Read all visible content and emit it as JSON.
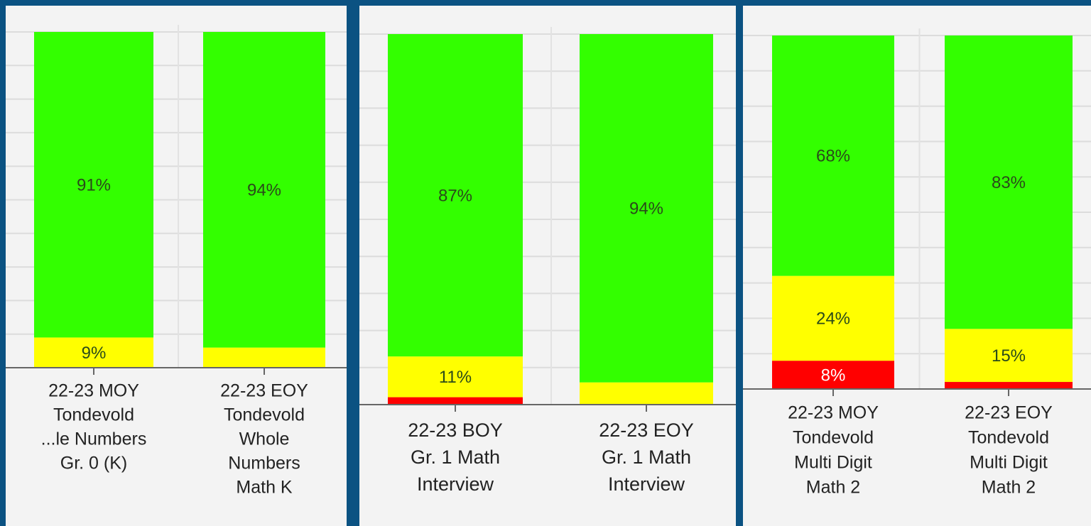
{
  "chart_data": [
    {
      "type": "stacked-bar",
      "categories": [
        [
          "22-23 MOY",
          "Tondevold",
          "...le Numbers",
          "Gr. 0 (K)"
        ],
        [
          "22-23 EOY",
          "Tondevold",
          "Whole",
          "Numbers",
          "Math K"
        ]
      ],
      "series": [
        {
          "color": "#ff0000",
          "values": [
            0,
            0
          ]
        },
        {
          "color": "#ffff00",
          "values": [
            9,
            6
          ],
          "value_labels": [
            "9%",
            null
          ]
        },
        {
          "color": "#33ff00",
          "values": [
            91,
            94
          ],
          "value_labels": [
            "91%",
            "94%"
          ]
        }
      ],
      "ylim": [
        0,
        100
      ],
      "yticks": [
        0,
        10,
        20,
        30,
        40,
        50,
        60,
        70,
        80,
        90,
        100
      ],
      "grid": true
    },
    {
      "type": "stacked-bar",
      "categories": [
        [
          "22-23 BOY",
          "Gr. 1 Math",
          "Interview"
        ],
        [
          "22-23 EOY",
          "Gr. 1 Math",
          "Interview"
        ]
      ],
      "series": [
        {
          "color": "#ff0000",
          "values": [
            2,
            0
          ]
        },
        {
          "color": "#ffff00",
          "values": [
            11,
            6
          ],
          "value_labels": [
            "11%",
            null
          ]
        },
        {
          "color": "#33ff00",
          "values": [
            87,
            94
          ],
          "value_labels": [
            "87%",
            "94%"
          ]
        }
      ],
      "ylim": [
        0,
        100
      ],
      "yticks": [
        0,
        10,
        20,
        30,
        40,
        50,
        60,
        70,
        80,
        90,
        100
      ],
      "grid": true
    },
    {
      "type": "stacked-bar",
      "categories": [
        [
          "22-23 MOY",
          "Tondevold",
          "Multi Digit",
          "Math 2"
        ],
        [
          "22-23 EOY",
          "Tondevold",
          "Multi Digit",
          "Math 2"
        ]
      ],
      "series": [
        {
          "color": "#ff0000",
          "values": [
            8,
            2
          ],
          "value_labels": [
            "8%",
            null
          ]
        },
        {
          "color": "#ffff00",
          "values": [
            24,
            15
          ],
          "value_labels": [
            "24%",
            "15%"
          ]
        },
        {
          "color": "#33ff00",
          "values": [
            68,
            83
          ],
          "value_labels": [
            "68%",
            "83%"
          ]
        }
      ],
      "ylim": [
        0,
        100
      ],
      "yticks": [
        0,
        10,
        20,
        30,
        40,
        50,
        60,
        70,
        80,
        90,
        100
      ],
      "grid": true
    }
  ]
}
